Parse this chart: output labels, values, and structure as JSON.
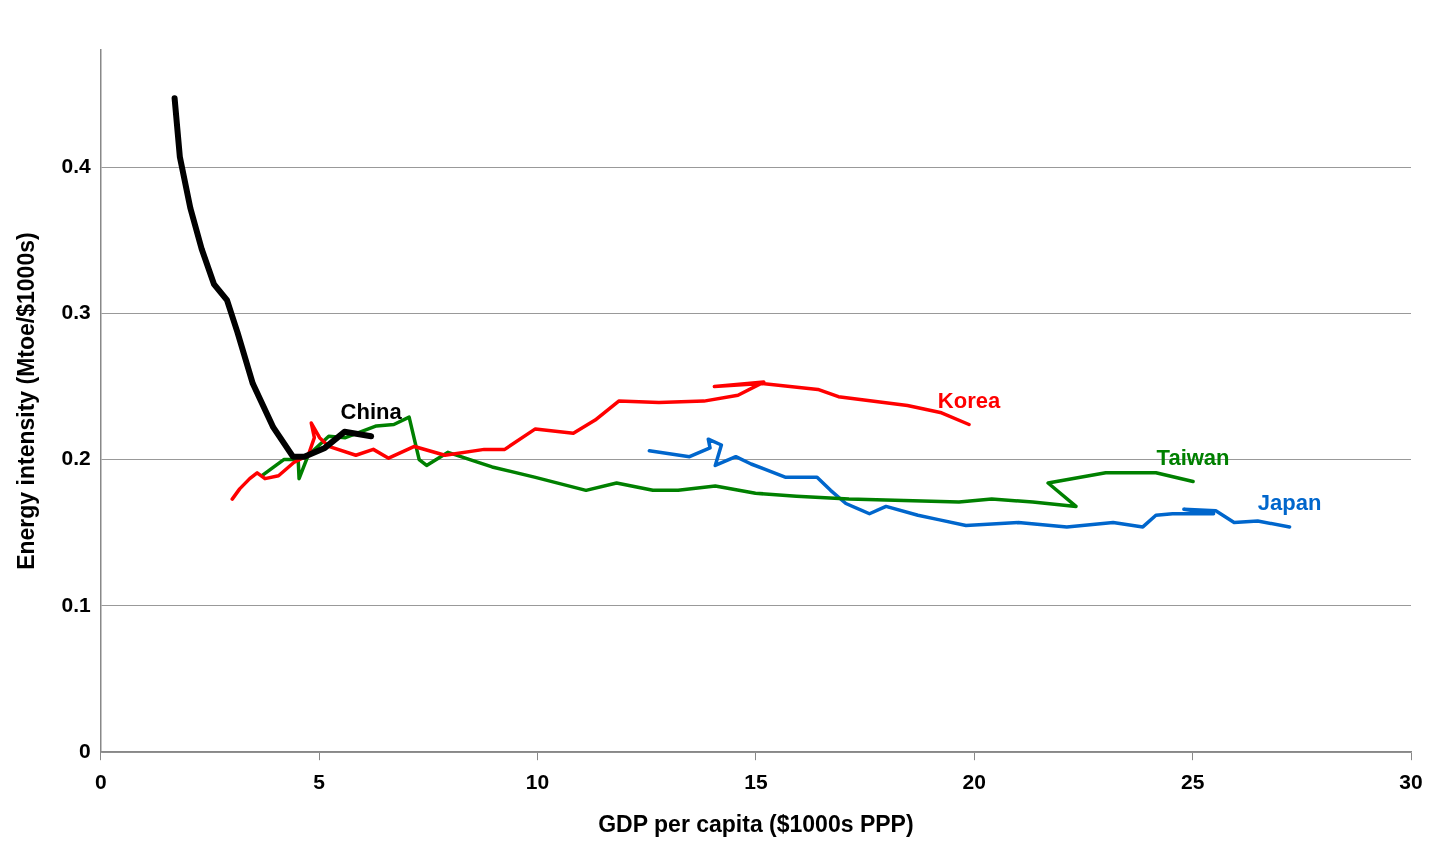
{
  "chart_data": {
    "type": "line",
    "xlabel": "GDP per capita ($1000s PPP)",
    "ylabel": "Energy intensity (Mtoe/$1000s)",
    "xlim": [
      0,
      30
    ],
    "xticks": [
      0,
      5,
      10,
      15,
      20,
      25,
      30
    ],
    "ylim": [
      0,
      0.48
    ],
    "yticks": [
      0,
      0.1,
      0.2,
      0.3,
      0.4
    ],
    "grid": "y",
    "legend": false,
    "marker": "none",
    "line_style": "solid",
    "series": [
      {
        "name": "China",
        "color": "#000000",
        "x": [
          1.69,
          1.81,
          2.05,
          2.31,
          2.59,
          2.89,
          3.13,
          3.48,
          3.95,
          4.4,
          4.66,
          5.13,
          5.58,
          6.19
        ],
        "values": [
          0.447,
          0.407,
          0.372,
          0.344,
          0.32,
          0.309,
          0.287,
          0.252,
          0.222,
          0.202,
          0.202,
          0.208,
          0.219,
          0.216
        ]
      },
      {
        "name": "Korea",
        "color": "#ff0000",
        "x": [
          3.01,
          3.18,
          3.41,
          3.58,
          3.76,
          4.07,
          4.42,
          4.75,
          4.89,
          4.82,
          5.01,
          5.22,
          5.84,
          6.24,
          6.59,
          7.18,
          7.88,
          8.78,
          9.25,
          9.95,
          10.82,
          11.32,
          11.86,
          12.78,
          13.81,
          14.59,
          15.18,
          14.05,
          15.13,
          16.42,
          16.89,
          18.47,
          19.25,
          19.88
        ],
        "values": [
          0.173,
          0.18,
          0.187,
          0.191,
          0.187,
          0.189,
          0.198,
          0.203,
          0.215,
          0.225,
          0.215,
          0.209,
          0.203,
          0.207,
          0.201,
          0.209,
          0.203,
          0.207,
          0.207,
          0.221,
          0.218,
          0.227,
          0.24,
          0.239,
          0.24,
          0.244,
          0.253,
          0.25,
          0.252,
          0.248,
          0.243,
          0.237,
          0.232,
          0.224
        ]
      },
      {
        "name": "Taiwan",
        "color": "#008000",
        "x": [
          3.69,
          4.19,
          4.52,
          4.54,
          4.75,
          5.22,
          5.6,
          6.31,
          6.71,
          7.06,
          7.29,
          7.46,
          7.95,
          8.66,
          8.96,
          9.93,
          11.11,
          11.81,
          12.64,
          13.22,
          14.07,
          14.99,
          15.93,
          17.13,
          19.65,
          20.4,
          21.34,
          22.33,
          21.69,
          23.01,
          24.16,
          25.01
        ],
        "values": [
          0.189,
          0.2,
          0.2,
          0.187,
          0.203,
          0.216,
          0.215,
          0.223,
          0.224,
          0.229,
          0.2,
          0.196,
          0.205,
          0.198,
          0.195,
          0.188,
          0.179,
          0.184,
          0.179,
          0.179,
          0.182,
          0.177,
          0.175,
          0.173,
          0.171,
          0.173,
          0.171,
          0.168,
          0.184,
          0.191,
          0.191,
          0.185
        ]
      },
      {
        "name": "Japan",
        "color": "#0066cc",
        "x": [
          12.56,
          13.48,
          13.95,
          13.91,
          14.21,
          14.07,
          14.54,
          14.89,
          15.67,
          16.4,
          16.71,
          17.06,
          17.6,
          17.98,
          18.71,
          19.18,
          19.81,
          21.01,
          22.12,
          23.18,
          23.86,
          24.16,
          24.54,
          25.48,
          24.8,
          25.53,
          25.95,
          26.49,
          27.22
        ],
        "values": [
          0.206,
          0.202,
          0.208,
          0.214,
          0.21,
          0.196,
          0.202,
          0.197,
          0.188,
          0.188,
          0.179,
          0.17,
          0.163,
          0.168,
          0.162,
          0.159,
          0.155,
          0.157,
          0.154,
          0.157,
          0.154,
          0.162,
          0.163,
          0.163,
          0.166,
          0.165,
          0.157,
          0.158,
          0.154
        ]
      }
    ]
  }
}
